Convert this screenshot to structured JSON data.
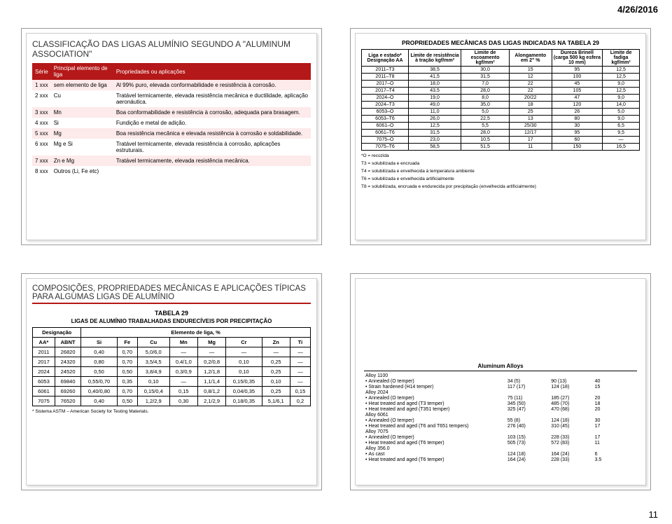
{
  "date": "4/26/2016",
  "page_number": "11",
  "slide_tl": {
    "title": "CLASSIFICAÇÃO DAS LIGAS ALUMÍNIO SEGUNDO A \"ALUMINUM ASSOCIATION\"",
    "headers": [
      "Série",
      "Principal elemento de liga",
      "Propriedades ou aplicações"
    ],
    "rows": [
      [
        "1 xxx",
        "sem elemento de liga",
        "Al 99% puro, elevada conformabilidade e resistência à corrosão."
      ],
      [
        "2 xxx",
        "Cu",
        "Tratável termicamente, elevada resistência mecânica e ductilidade, aplicação aeronáutica."
      ],
      [
        "3 xxx",
        "Mn",
        "Boa conformabilidade e resistência à corrosão, adequada para brasagem."
      ],
      [
        "4 xxx",
        "Si",
        "Fundição e metal de adição."
      ],
      [
        "5 xxx",
        "Mg",
        "Boa resistência mecânica e elevada resistência à corrosão e soldabilidade."
      ],
      [
        "6 xxx",
        "Mg e Si",
        "Tratável termicamente, elevada resistência à corrosão, aplicações estruturais."
      ],
      [
        "7 xxx",
        "Zn e Mg",
        "Tratável termicamente, elevada resistência mecânica."
      ],
      [
        "8 xxx",
        "Outros (Li, Fe etc)",
        ""
      ]
    ],
    "colors": {
      "header_bg": "#b41818",
      "odd_bg": "#fdeaea"
    }
  },
  "slide_tr": {
    "title": "PROPRIEDADES MECÂNICAS DAS LIGAS INDICADAS NA TABELA 29",
    "headers": [
      "Liga e estado* Designação AA",
      "Limite de resistência à tração kgf/mm²",
      "Limite de escoamento kgf/mm²",
      "Alongamento em 2\" %",
      "Dureza Brinell (carga 500 kg esfera 10 mm)",
      "Limite de fadiga kgf/mm²"
    ],
    "rows": [
      [
        "2011–T3",
        "38,5",
        "30,0",
        "15",
        "95",
        "12,5"
      ],
      [
        "2011–T8",
        "41,5",
        "31,5",
        "12",
        "100",
        "12,5"
      ],
      [
        "2017–O",
        "18,0",
        "7,0",
        "22",
        "45",
        "9,0"
      ],
      [
        "2017–T4",
        "43,5",
        "28,0",
        "22",
        "105",
        "12,5"
      ],
      [
        "2024–O",
        "19,0",
        "8,0",
        "20/22",
        "47",
        "9,0"
      ],
      [
        "2024–T3",
        "49,0",
        "35,0",
        "18",
        "120",
        "14,0"
      ],
      [
        "6053–O",
        "11,0",
        "5,0",
        "25",
        "26",
        "5,0"
      ],
      [
        "6053–T6",
        "26,0",
        "22,5",
        "13",
        "80",
        "9,0"
      ],
      [
        "6061–O",
        "12,5",
        "5,5",
        "25/30",
        "30",
        "6,5"
      ],
      [
        "6061–T6",
        "31,5",
        "28,0",
        "12/17",
        "95",
        "9,5"
      ],
      [
        "7075–O",
        "23,0",
        "10,5",
        "17",
        "60",
        "—"
      ],
      [
        "7075–T6",
        "58,5",
        "51,5",
        "11",
        "150",
        "16,5"
      ]
    ],
    "footnotes": [
      "*O = recozida",
      "T3 = solubilizada e encruada",
      "T4 = solubilizada e envelhecida à temperatura ambiente",
      "T6 = solubilizada e envelhecida artificialmente",
      "T8 = solubilizada, encruada e endurecida por precipitação (envelhecida artificialmente)"
    ]
  },
  "slide_bl": {
    "heading": "COMPOSIÇÕES, PROPRIEDADES MECÂNICAS E APLICAÇÕES TÍPICAS PARA ALGUMAS LIGAS DE ALUMÍNIO",
    "table_label": "TABELA 29",
    "table_caption": "LIGAS DE ALUMÍNIO TRABALHADAS ENDURECÍVEIS POR PRECIPITAÇÃO",
    "group_headers": [
      "Designação",
      "Elemento de liga, %"
    ],
    "col_headers": [
      "AA*",
      "ABNT",
      "Si",
      "Fe",
      "Cu",
      "Mn",
      "Mg",
      "Cr",
      "Zn",
      "Ti"
    ],
    "rows": [
      [
        "2011",
        "26820",
        "0,40",
        "0,70",
        "5,0/6,0",
        "—",
        "—",
        "—",
        "—",
        "—"
      ],
      [
        "2017",
        "24320",
        "0,80",
        "0,70",
        "3,5/4,5",
        "0,4/1,0",
        "0,2/0,8",
        "0,10",
        "0,25",
        "—"
      ],
      [
        "2024",
        "24520",
        "0,50",
        "0,50",
        "3,8/4,9",
        "0,3/0,9",
        "1,2/1,8",
        "0,10",
        "0,25",
        "—"
      ],
      [
        "6053",
        "69840",
        "0,55/0,70",
        "0,35",
        "0,10",
        "—",
        "1,1/1,4",
        "0,15/0,35",
        "0,10",
        "—"
      ],
      [
        "6061",
        "69260",
        "0,40/0,80",
        "0,70",
        "0,15/0,4",
        "0,15",
        "0,8/1,2",
        "0,04/0,35",
        "0,25",
        "0,15"
      ],
      [
        "7075",
        "76520",
        "0,40",
        "0,50",
        "1,2/2,9",
        "0,30",
        "2,1/2,9",
        "0,18/0,35",
        "5,1/6,1",
        "0,2"
      ]
    ],
    "footnote": "* Sistema ASTM – American Society for Testing Materials."
  },
  "slide_br": {
    "title": "Aluminum Alloys",
    "rows": [
      {
        "type": "group",
        "label": "Alloy 1100"
      },
      {
        "type": "sub",
        "label": "Annealed (O temper)",
        "c1": "34 (5)",
        "c2": "90 (13)",
        "c3": "40"
      },
      {
        "type": "sub",
        "label": "Strain hardened (H14 temper)",
        "c1": "117 (17)",
        "c2": "124 (18)",
        "c3": "15"
      },
      {
        "type": "group",
        "label": "Alloy 2024"
      },
      {
        "type": "sub",
        "label": "Annealed (O temper)",
        "c1": "75 (11)",
        "c2": "185 (27)",
        "c3": "20"
      },
      {
        "type": "sub",
        "label": "Heat treated and aged (T3 temper)",
        "c1": "345 (50)",
        "c2": "485 (70)",
        "c3": "18"
      },
      {
        "type": "sub",
        "label": "Heat treated and aged (T351 temper)",
        "c1": "325 (47)",
        "c2": "470 (68)",
        "c3": "20"
      },
      {
        "type": "group",
        "label": "Alloy 6061"
      },
      {
        "type": "sub",
        "label": "Annealed (O temper)",
        "c1": "55 (8)",
        "c2": "124 (18)",
        "c3": "30"
      },
      {
        "type": "sub",
        "label": "Heat treated and aged (T6 and T651 tempers)",
        "c1": "276 (40)",
        "c2": "310 (45)",
        "c3": "17"
      },
      {
        "type": "group",
        "label": "Alloy 7075"
      },
      {
        "type": "sub",
        "label": "Annealed (O temper)",
        "c1": "103 (15)",
        "c2": "228 (33)",
        "c3": "17"
      },
      {
        "type": "sub",
        "label": "Heat treated and aged (T6 temper)",
        "c1": "505 (73)",
        "c2": "572 (83)",
        "c3": "11"
      },
      {
        "type": "group",
        "label": "Alloy 356.0"
      },
      {
        "type": "sub",
        "label": "As cast",
        "c1": "124 (18)",
        "c2": "164 (24)",
        "c3": "6"
      },
      {
        "type": "sub",
        "label": "Heat treated and aged (T6 temper)",
        "c1": "164 (24)",
        "c2": "228 (33)",
        "c3": "3.5"
      }
    ]
  }
}
